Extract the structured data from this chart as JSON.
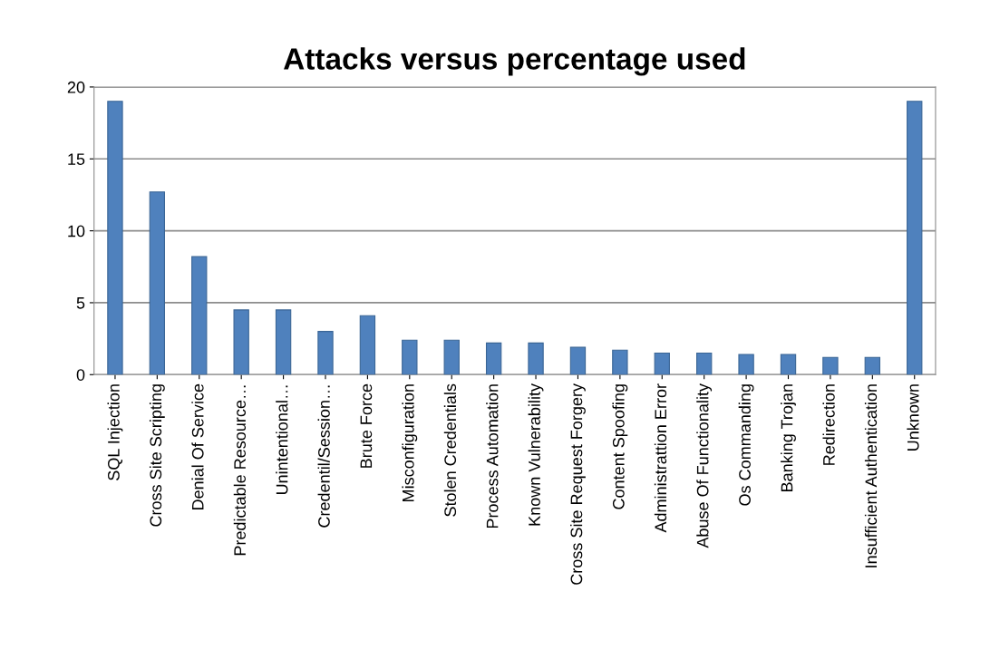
{
  "chart_data": {
    "type": "bar",
    "title": "Attacks versus percentage used",
    "categories": [
      "SQL Injection",
      "Cross Site Scripting",
      "Denial Of Service",
      "Predictable Resource…",
      "Unintentional…",
      "Credentil/Session…",
      "Brute Force",
      "Misconfiguration",
      "Stolen Credentials",
      "Process Automation",
      "Known Vulnerability",
      "Cross Site Request Forgery",
      "Content Spoofing",
      "Administrattion Error",
      "Abuse Of Functionality",
      "Os Commanding",
      "Banking Trojan",
      "Redirection",
      "Insufficient Authentication",
      "Unknown"
    ],
    "values": [
      19,
      12.7,
      8.2,
      4.5,
      4.5,
      3.0,
      4.1,
      2.4,
      2.4,
      2.2,
      2.2,
      1.9,
      1.7,
      1.5,
      1.5,
      1.4,
      1.4,
      1.2,
      1.2,
      19
    ],
    "color": "#4f81bd",
    "ylim": [
      0,
      20
    ],
    "yticks": [
      0,
      5,
      10,
      15,
      20
    ],
    "grid": "y",
    "legend": false
  }
}
